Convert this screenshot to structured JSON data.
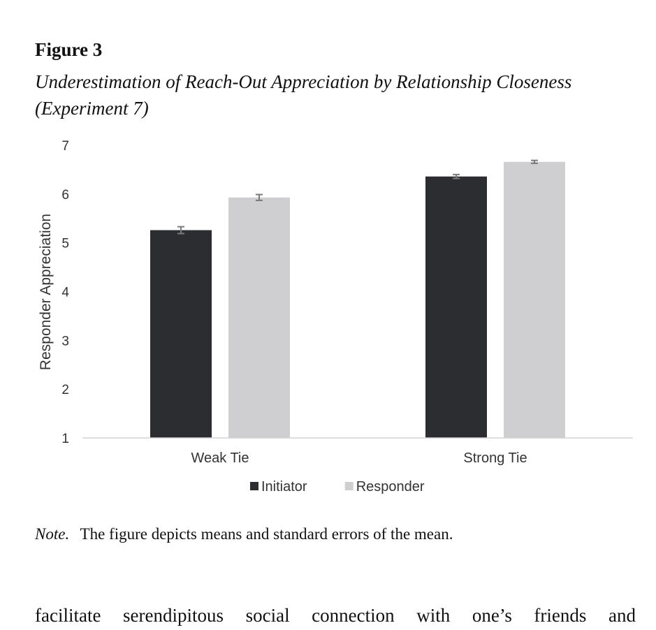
{
  "figure": {
    "label": "Figure 3",
    "title": "Underestimation of Reach-Out Appreciation by Relationship Closeness (Experiment 7)"
  },
  "note": {
    "label": "Note.",
    "text": "The figure depicts means and standard errors of the mean."
  },
  "body_text": "facilitate serendipitous social connection with one’s friends and",
  "chart_data": {
    "type": "bar",
    "categories": [
      "Weak Tie",
      "Strong Tie"
    ],
    "series": [
      {
        "name": "Initiator",
        "values": [
          5.26,
          6.36
        ],
        "errors": [
          0.07,
          0.04
        ],
        "color": "#2b2d31"
      },
      {
        "name": "Responder",
        "values": [
          5.93,
          6.66
        ],
        "errors": [
          0.06,
          0.03
        ],
        "color": "#cfcfd1"
      }
    ],
    "ylabel": "Responder Appreciation",
    "xlabel": "",
    "ylim": [
      1,
      7
    ],
    "yticks": [
      1,
      2,
      3,
      4,
      5,
      6,
      7
    ],
    "grid": false,
    "legend": "bottom-center"
  }
}
